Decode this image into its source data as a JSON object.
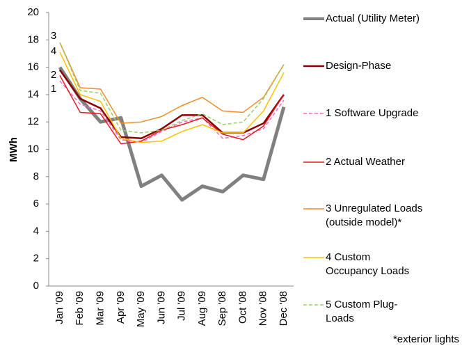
{
  "chart_data": {
    "type": "line",
    "y_label": "MWh",
    "categories": [
      "Jan '09",
      "Feb '09",
      "Mar '09",
      "Apr '09",
      "May '09",
      "Jun '09",
      "Jul '09",
      "Aug '09",
      "Sep '08",
      "Oct '08",
      "Nov '08",
      "Dec '08"
    ],
    "ylim": [
      0,
      20
    ],
    "yticks": [
      0,
      2,
      4,
      6,
      8,
      10,
      12,
      14,
      16,
      18,
      20
    ],
    "grid": false,
    "series": [
      {
        "name": "Actual (Utility Meter)",
        "color": "#808080",
        "width": 5,
        "dash": false,
        "values": [
          16.0,
          13.7,
          12.0,
          12.3,
          7.3,
          8.1,
          6.3,
          7.3,
          6.9,
          8.1,
          7.8,
          13.1
        ]
      },
      {
        "name": "Design-Phase",
        "color": "#8b0000",
        "width": 2.5,
        "dash": false,
        "values": [
          15.8,
          13.7,
          13.0,
          10.9,
          10.8,
          11.5,
          12.5,
          12.5,
          11.2,
          11.2,
          11.9,
          14.0
        ]
      },
      {
        "name": "1 Software Upgrade",
        "color": "#ff66cc",
        "width": 1.5,
        "dash": true,
        "values": [
          15.0,
          13.3,
          12.8,
          10.7,
          10.5,
          11.3,
          12.0,
          12.3,
          10.8,
          11.0,
          11.5,
          13.6
        ]
      },
      {
        "name": "2 Actual Weather",
        "color": "#e31a1c",
        "width": 1.5,
        "dash": false,
        "values": [
          15.4,
          12.7,
          12.6,
          10.4,
          10.6,
          11.4,
          11.8,
          12.3,
          11.1,
          10.7,
          11.7,
          14.0
        ]
      },
      {
        "name": "3 Unregulated Loads\n(outside model)*",
        "color": "#f28c28",
        "width": 1.5,
        "dash": false,
        "values": [
          17.8,
          14.5,
          14.4,
          11.9,
          12.0,
          12.4,
          13.2,
          13.8,
          12.8,
          12.7,
          13.8,
          16.2
        ]
      },
      {
        "name": "4 Custom\nOccupancy Loads",
        "color": "#ffc000",
        "width": 1.5,
        "dash": false,
        "values": [
          17.1,
          14.0,
          13.5,
          10.8,
          10.5,
          10.6,
          11.3,
          11.8,
          11.2,
          11.2,
          12.8,
          15.6
        ]
      },
      {
        "name": "5 Custom Plug-\nLoads",
        "color": "#99cc66",
        "width": 1.5,
        "dash": true,
        "values": [
          17.8,
          14.3,
          14.1,
          11.4,
          11.2,
          11.4,
          12.1,
          12.6,
          11.8,
          12.0,
          13.7,
          16.2
        ]
      }
    ],
    "annotations": [
      "3",
      "4",
      "2",
      "1"
    ],
    "footnote": "*exterior lights"
  }
}
